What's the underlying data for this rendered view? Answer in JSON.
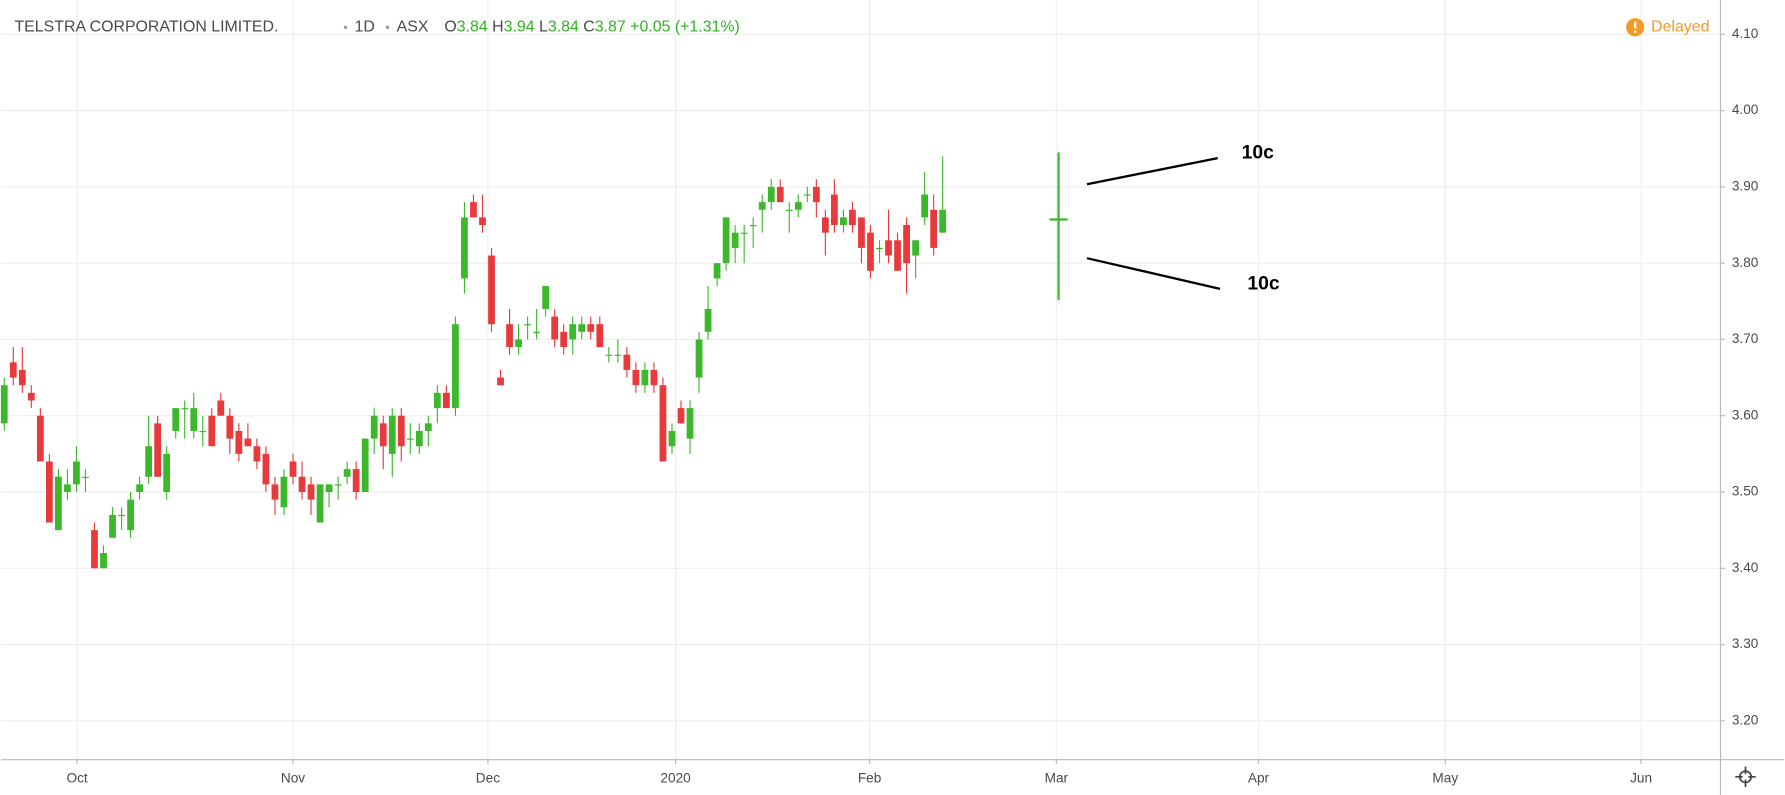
{
  "chart_data": {
    "type": "candlestick",
    "header": {
      "symbol": "TELSTRA CORPORATION LIMITED.",
      "interval": "1D",
      "exchange": "ASX",
      "open_label": "O",
      "open": 3.84,
      "high_label": "H",
      "high": 3.94,
      "low_label": "L",
      "low": 3.84,
      "close_label": "C",
      "close": 3.87,
      "change": "+0.05",
      "change_pct": "(+1.31%)",
      "status": "Delayed"
    },
    "annotations": [
      "10c",
      "10c"
    ],
    "up_color": "#3cb82b",
    "down_color": "#e8393b",
    "grid": true,
    "xlim": [
      -0.38,
      190.2
    ],
    "xticks": [
      {
        "value": 8.07,
        "label": "Oct"
      },
      {
        "value": 32.0,
        "label": "Nov"
      },
      {
        "value": 53.6,
        "label": "Dec"
      },
      {
        "value": 74.4,
        "label": "2020"
      },
      {
        "value": 95.9,
        "label": "Feb"
      },
      {
        "value": 116.6,
        "label": "Mar"
      },
      {
        "value": 139.0,
        "label": "Apr"
      },
      {
        "value": 159.7,
        "label": "May"
      },
      {
        "value": 181.4,
        "label": "Jun"
      }
    ],
    "ylim": [
      3.149,
      4.145
    ],
    "yticks": [
      {
        "value": 3.2,
        "label": "3.20"
      },
      {
        "value": 3.3,
        "label": "3.30"
      },
      {
        "value": 3.4,
        "label": "3.40"
      },
      {
        "value": 3.5,
        "label": "3.50"
      },
      {
        "value": 3.6,
        "label": "3.60"
      },
      {
        "value": 3.7,
        "label": "3.70"
      },
      {
        "value": 3.8,
        "label": "3.80"
      },
      {
        "value": 3.9,
        "label": "3.90"
      },
      {
        "value": 4.0,
        "label": "4.00"
      },
      {
        "value": 4.1,
        "label": "4.10"
      }
    ],
    "open": [
      3.59,
      3.67,
      3.66,
      3.63,
      3.6,
      3.54,
      3.45,
      3.5,
      3.51,
      3.52,
      3.45,
      3.4,
      3.44,
      3.47,
      3.45,
      3.5,
      3.52,
      3.59,
      3.5,
      3.58,
      3.61,
      3.58,
      3.58,
      3.6,
      3.62,
      3.6,
      3.58,
      3.57,
      3.56,
      3.55,
      3.51,
      3.48,
      3.54,
      3.52,
      3.51,
      3.46,
      3.5,
      3.51,
      3.52,
      3.53,
      3.5,
      3.57,
      3.59,
      3.55,
      3.6,
      3.57,
      3.56,
      3.58,
      3.61,
      3.63,
      3.61,
      3.78,
      3.88,
      3.86,
      3.81,
      3.65,
      3.72,
      3.69,
      3.72,
      3.71,
      3.74,
      3.73,
      3.71,
      3.7,
      3.71,
      3.72,
      3.72,
      3.68,
      3.68,
      3.68,
      3.66,
      3.64,
      3.66,
      3.64,
      3.56,
      3.61,
      3.57,
      3.65,
      3.71,
      3.78,
      3.8,
      3.82,
      3.84,
      3.85,
      3.87,
      3.88,
      3.9,
      3.87,
      3.87,
      3.89,
      3.9,
      3.86,
      3.89,
      3.85,
      3.87,
      3.86,
      3.84,
      3.82,
      3.83,
      3.83,
      3.85,
      3.81,
      3.86,
      3.87,
      3.84
    ],
    "high": [
      3.65,
      3.69,
      3.69,
      3.64,
      3.61,
      3.55,
      3.53,
      3.53,
      3.56,
      3.53,
      3.46,
      3.43,
      3.48,
      3.48,
      3.5,
      3.52,
      3.6,
      3.6,
      3.56,
      3.61,
      3.62,
      3.63,
      3.6,
      3.61,
      3.63,
      3.61,
      3.59,
      3.59,
      3.57,
      3.56,
      3.52,
      3.53,
      3.55,
      3.54,
      3.52,
      3.51,
      3.51,
      3.52,
      3.54,
      3.54,
      3.57,
      3.61,
      3.6,
      3.61,
      3.61,
      3.59,
      3.59,
      3.6,
      3.64,
      3.64,
      3.73,
      3.88,
      3.89,
      3.89,
      3.82,
      3.66,
      3.74,
      3.72,
      3.73,
      3.74,
      3.77,
      3.74,
      3.72,
      3.73,
      3.73,
      3.73,
      3.73,
      3.69,
      3.7,
      3.69,
      3.67,
      3.67,
      3.67,
      3.65,
      3.59,
      3.62,
      3.62,
      3.71,
      3.77,
      3.8,
      3.86,
      3.85,
      3.85,
      3.86,
      3.89,
      3.91,
      3.91,
      3.88,
      3.89,
      3.9,
      3.91,
      3.87,
      3.91,
      3.87,
      3.88,
      3.86,
      3.85,
      3.83,
      3.87,
      3.84,
      3.86,
      3.83,
      3.92,
      3.89,
      3.94
    ],
    "low": [
      3.58,
      3.64,
      3.63,
      3.61,
      3.54,
      3.46,
      3.45,
      3.49,
      3.5,
      3.5,
      3.4,
      3.4,
      3.44,
      3.45,
      3.44,
      3.49,
      3.51,
      3.52,
      3.49,
      3.57,
      3.57,
      3.57,
      3.56,
      3.56,
      3.6,
      3.55,
      3.54,
      3.56,
      3.53,
      3.5,
      3.47,
      3.47,
      3.51,
      3.49,
      3.47,
      3.46,
      3.48,
      3.49,
      3.51,
      3.49,
      3.5,
      3.55,
      3.53,
      3.52,
      3.54,
      3.55,
      3.55,
      3.56,
      3.59,
      3.61,
      3.6,
      3.76,
      3.86,
      3.84,
      3.71,
      3.64,
      3.68,
      3.68,
      3.7,
      3.7,
      3.73,
      3.69,
      3.68,
      3.68,
      3.7,
      3.7,
      3.69,
      3.67,
      3.67,
      3.65,
      3.63,
      3.63,
      3.63,
      3.54,
      3.55,
      3.59,
      3.55,
      3.63,
      3.7,
      3.77,
      3.79,
      3.8,
      3.8,
      3.82,
      3.84,
      3.87,
      3.88,
      3.84,
      3.86,
      3.88,
      3.86,
      3.81,
      3.84,
      3.84,
      3.84,
      3.8,
      3.78,
      3.8,
      3.8,
      3.79,
      3.76,
      3.78,
      3.85,
      3.81,
      3.84
    ],
    "close": [
      3.64,
      3.65,
      3.64,
      3.62,
      3.54,
      3.46,
      3.52,
      3.51,
      3.54,
      3.52,
      3.4,
      3.42,
      3.47,
      3.47,
      3.49,
      3.51,
      3.56,
      3.52,
      3.55,
      3.61,
      3.61,
      3.61,
      3.58,
      3.56,
      3.6,
      3.57,
      3.55,
      3.56,
      3.54,
      3.51,
      3.49,
      3.52,
      3.52,
      3.5,
      3.49,
      3.51,
      3.51,
      3.51,
      3.53,
      3.5,
      3.57,
      3.6,
      3.56,
      3.6,
      3.56,
      3.57,
      3.58,
      3.59,
      3.63,
      3.61,
      3.72,
      3.86,
      3.86,
      3.85,
      3.72,
      3.64,
      3.69,
      3.7,
      3.72,
      3.71,
      3.77,
      3.7,
      3.69,
      3.72,
      3.72,
      3.71,
      3.69,
      3.68,
      3.68,
      3.66,
      3.64,
      3.66,
      3.64,
      3.54,
      3.58,
      3.59,
      3.61,
      3.7,
      3.74,
      3.8,
      3.86,
      3.84,
      3.84,
      3.85,
      3.88,
      3.9,
      3.88,
      3.87,
      3.88,
      3.89,
      3.88,
      3.84,
      3.85,
      3.86,
      3.85,
      3.82,
      3.79,
      3.82,
      3.81,
      3.79,
      3.8,
      3.83,
      3.89,
      3.82,
      3.87
    ]
  }
}
